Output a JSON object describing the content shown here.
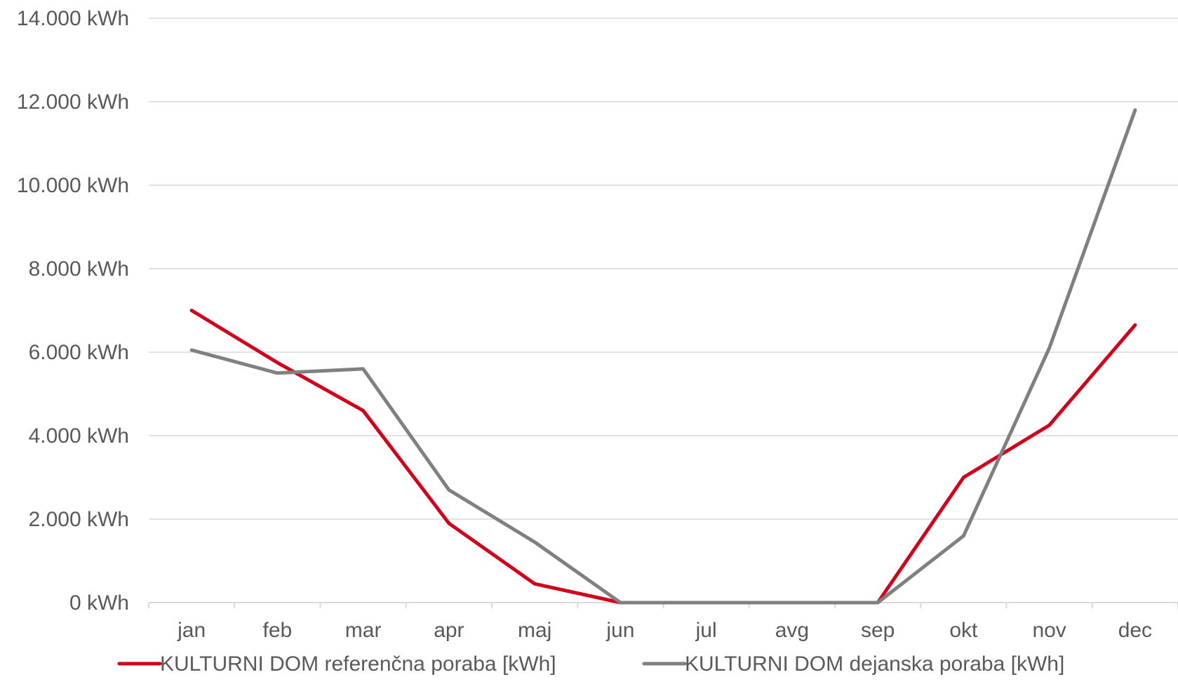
{
  "chart_data": {
    "type": "line",
    "title": "",
    "xlabel": "",
    "ylabel": "",
    "categories": [
      "jan",
      "feb",
      "mar",
      "apr",
      "maj",
      "jun",
      "jul",
      "avg",
      "sep",
      "okt",
      "nov",
      "dec"
    ],
    "ylim": [
      0,
      14000
    ],
    "y_ticks": [
      {
        "value": 0,
        "label": "0 kWh"
      },
      {
        "value": 2000,
        "label": "2.000 kWh"
      },
      {
        "value": 4000,
        "label": "4.000 kWh"
      },
      {
        "value": 6000,
        "label": "6.000 kWh"
      },
      {
        "value": 8000,
        "label": "8.000 kWh"
      },
      {
        "value": 10000,
        "label": "10.000 kWh"
      },
      {
        "value": 12000,
        "label": "12.000 kWh"
      },
      {
        "value": 14000,
        "label": "14.000 kWh"
      }
    ],
    "grid": true,
    "legend_position": "bottom",
    "series": [
      {
        "name": "KULTURNI DOM referenčna poraba [kWh]",
        "color": "#d0021b",
        "values": [
          7000,
          5750,
          4600,
          1900,
          450,
          0,
          0,
          0,
          0,
          3000,
          4250,
          6650
        ]
      },
      {
        "name": "KULTURNI DOM dejanska poraba [kWh]",
        "color": "#808080",
        "values": [
          6050,
          5500,
          5600,
          2700,
          1450,
          0,
          0,
          0,
          0,
          1600,
          6100,
          11800
        ]
      }
    ]
  }
}
